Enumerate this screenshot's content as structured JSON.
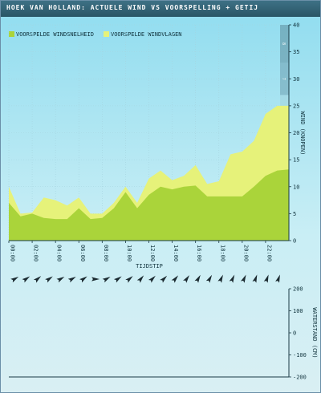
{
  "title": "HOEK VAN HOLLAND: ACTUELE WIND VS VOORSPELLING + GETIJ",
  "colors": {
    "speed": "#aad43a",
    "gust": "#e6f27a",
    "title_bg": "#2f5f73"
  },
  "chart_data": [
    {
      "type": "area",
      "legend": {
        "placement": "top-left"
      },
      "series": [
        {
          "name": "VOORSPELDE WINDSNELHEID",
          "color": "#aad43a",
          "x": [
            0,
            1,
            2,
            3,
            4,
            5,
            6,
            7,
            8,
            9,
            10,
            11,
            12,
            13,
            14,
            15,
            16,
            17,
            18,
            19,
            20,
            21,
            22,
            23,
            24
          ],
          "values": [
            7,
            4.5,
            5,
            4.2,
            4,
            4,
            6,
            4,
            4.2,
            6,
            9,
            6,
            8.5,
            10,
            9.5,
            10,
            10.2,
            8.2,
            8.2,
            8.2,
            8.2,
            10,
            12,
            13,
            13.2
          ]
        },
        {
          "name": "VOORSPELDE WINDVLAGEN",
          "color": "#e6f27a",
          "x": [
            0,
            1,
            2,
            3,
            4,
            5,
            6,
            7,
            8,
            9,
            10,
            11,
            12,
            13,
            14,
            15,
            16,
            17,
            18,
            19,
            20,
            21,
            22,
            23,
            24
          ],
          "values": [
            10,
            5,
            5.2,
            8,
            7.5,
            6.5,
            8,
            5,
            5,
            7,
            10,
            7,
            11.5,
            13,
            11.2,
            12,
            14,
            10.5,
            11,
            16,
            16.5,
            18.5,
            23.5,
            25,
            25
          ]
        }
      ],
      "xlabel": "TIJDSTIP",
      "ylabel": "WIND (KNOPEN)",
      "x_ticks": [
        "00:00",
        "02:00",
        "04:00",
        "06:00",
        "08:00",
        "10:00",
        "12:00",
        "14:00",
        "16:00",
        "18:00",
        "20:00",
        "22:00"
      ],
      "y_ticks": [
        "0",
        "5",
        "10",
        "15",
        "20",
        "25",
        "30",
        "35",
        "40"
      ],
      "ylim": [
        0,
        40
      ],
      "beaufort_labels": [
        "1",
        "2",
        "3",
        "4",
        "5",
        "6",
        "7",
        "8",
        "9"
      ],
      "grid": true
    },
    {
      "type": "line",
      "ylabel": "WATERSTAND (CM)",
      "y_ticks": [
        "200",
        "100",
        "0",
        "-100",
        "-200"
      ],
      "ylim": [
        -200,
        200
      ],
      "values": []
    }
  ],
  "wind_arrow_directions_deg": [
    240,
    235,
    230,
    235,
    240,
    240,
    235,
    270,
    240,
    235,
    230,
    220,
    225,
    225,
    220,
    215,
    210,
    210,
    205,
    205,
    205,
    200,
    200,
    200
  ]
}
